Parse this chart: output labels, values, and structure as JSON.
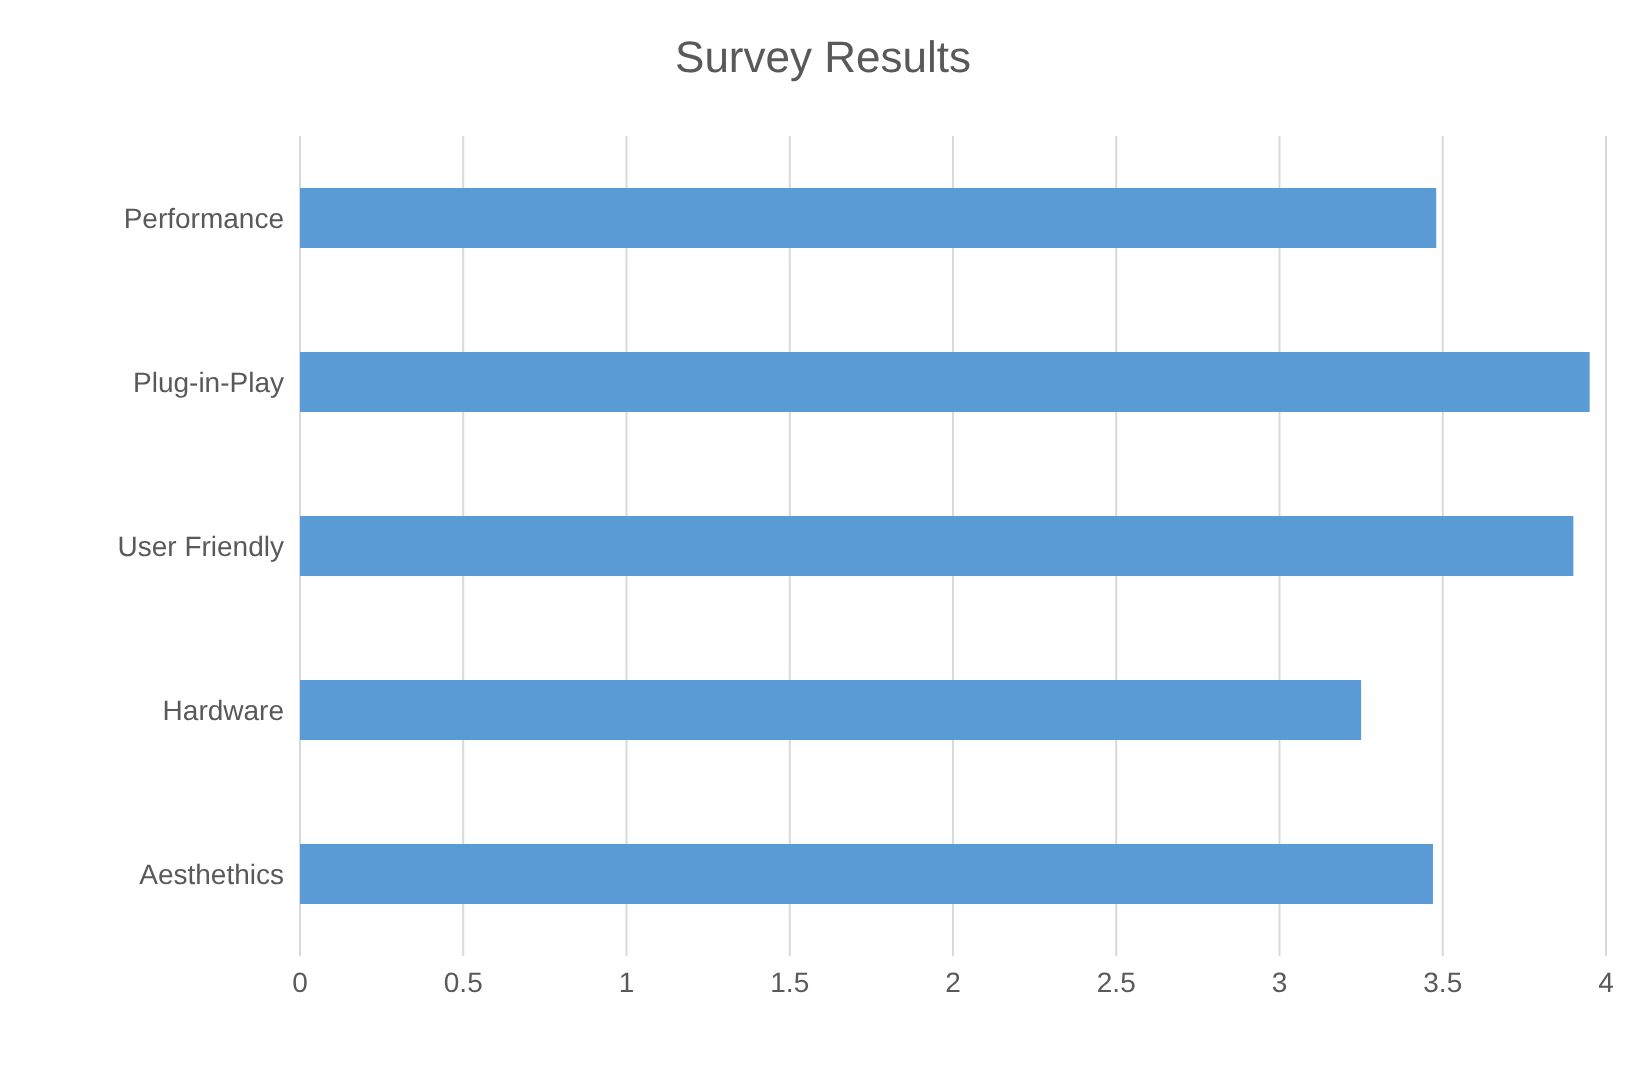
{
  "chart_data": {
    "type": "bar",
    "orientation": "horizontal",
    "title": "Survey Results",
    "categories": [
      "Performance",
      "Plug-in-Play",
      "User Friendly",
      "Hardware",
      "Aesthethics"
    ],
    "values": [
      3.48,
      3.95,
      3.9,
      3.25,
      3.47
    ],
    "color": "#5b9bd5",
    "xlim": [
      0,
      4
    ],
    "xticks": [
      0,
      0.5,
      1,
      1.5,
      2,
      2.5,
      3,
      3.5,
      4
    ],
    "grid": "x",
    "legend": false
  }
}
